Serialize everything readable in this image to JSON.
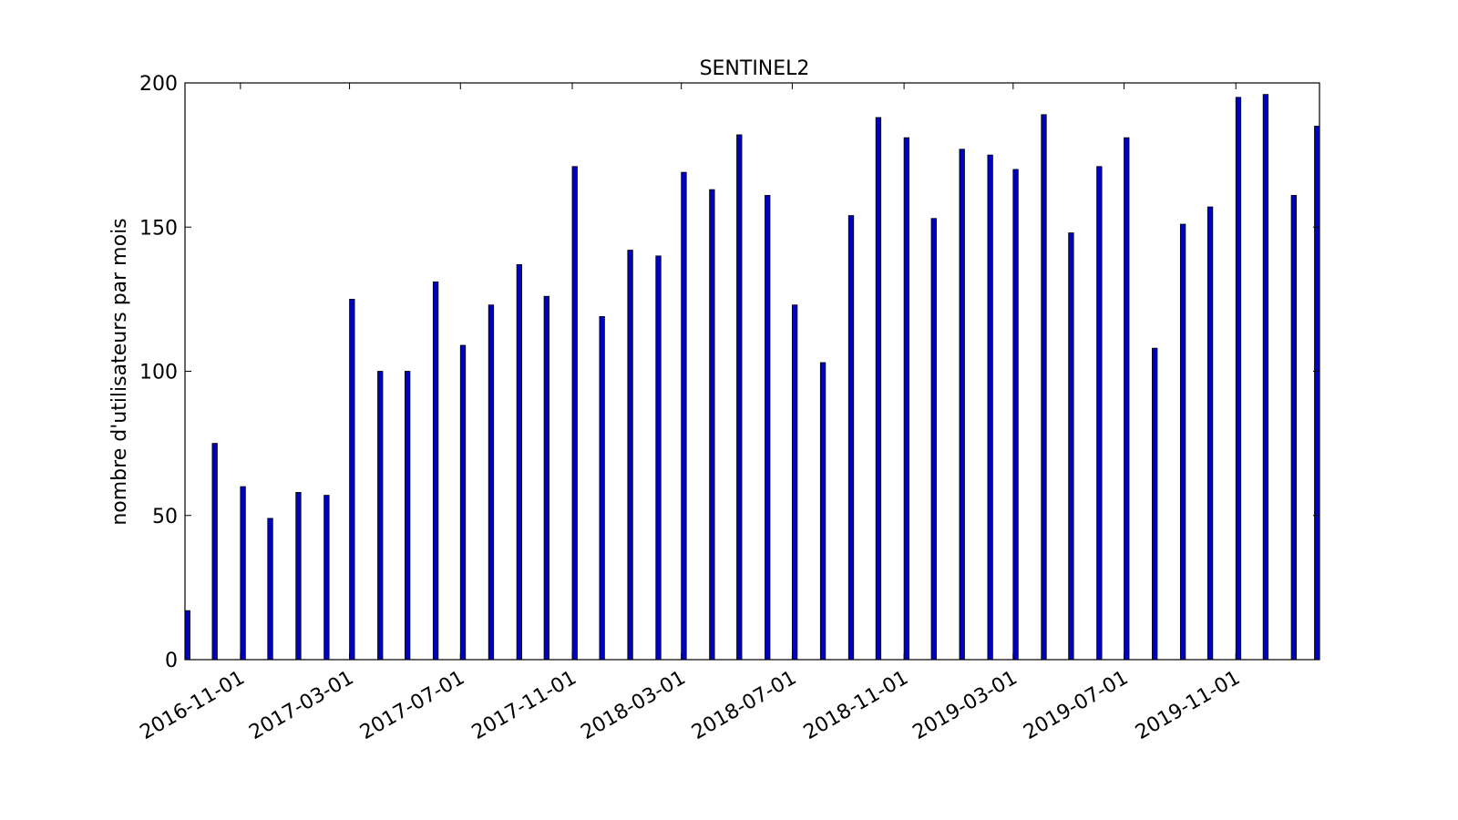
{
  "chart_data": {
    "type": "bar",
    "title": "SENTINEL2",
    "xlabel": "",
    "ylabel": "nombre d'utilisateurs par mois",
    "ylim": [
      0,
      200
    ],
    "xlim": [
      "2016-09-01",
      "2020-02-01"
    ],
    "yticks": [
      0,
      50,
      100,
      150,
      200
    ],
    "xticks": [
      "2016-11-01",
      "2017-03-01",
      "2017-07-01",
      "2017-11-01",
      "2018-03-01",
      "2018-07-01",
      "2018-11-01",
      "2019-03-01",
      "2019-07-01",
      "2019-11-01"
    ],
    "grid": false,
    "bar_color": "#0000bf",
    "categories": [
      "2016-09-01",
      "2016-10-01",
      "2016-11-01",
      "2016-12-01",
      "2017-01-01",
      "2017-02-01",
      "2017-03-01",
      "2017-04-01",
      "2017-05-01",
      "2017-06-01",
      "2017-07-01",
      "2017-08-01",
      "2017-09-01",
      "2017-10-01",
      "2017-11-01",
      "2017-12-01",
      "2018-01-01",
      "2018-02-01",
      "2018-03-01",
      "2018-04-01",
      "2018-05-01",
      "2018-06-01",
      "2018-07-01",
      "2018-08-01",
      "2018-09-01",
      "2018-10-01",
      "2018-11-01",
      "2018-12-01",
      "2019-01-01",
      "2019-02-01",
      "2019-03-01",
      "2019-04-01",
      "2019-05-01",
      "2019-06-01",
      "2019-07-01",
      "2019-08-01",
      "2019-09-01",
      "2019-10-01",
      "2019-11-01",
      "2019-12-01",
      "2020-01-01",
      "2020-02-01"
    ],
    "values": [
      17,
      75,
      60,
      49,
      58,
      57,
      125,
      100,
      100,
      131,
      109,
      123,
      137,
      126,
      171,
      119,
      142,
      140,
      169,
      163,
      182,
      161,
      123,
      103,
      154,
      188,
      181,
      153,
      177,
      175,
      170,
      189,
      148,
      171,
      181,
      108,
      151,
      157,
      195,
      196,
      161,
      185
    ]
  }
}
